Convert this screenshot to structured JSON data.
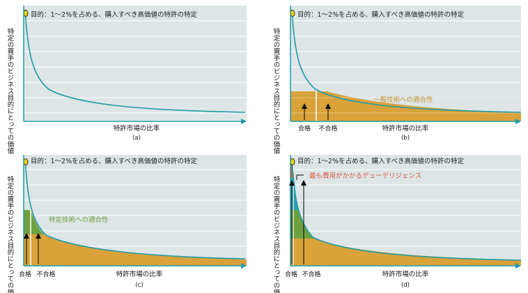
{
  "panels": [
    {
      "id": "a",
      "goal": "目的：1～2%を占める、購入すべき高価値の特許の特定",
      "ylabel": "特定の買手のビジネス目的にとっての価値",
      "xlabel": "特許市場の比率",
      "caption": "(a)"
    },
    {
      "id": "b",
      "goal": "目的：1～2%を占める、購入すべき高価値の特許の特定",
      "ylabel": "特定の買手のビジネス目的にとっての価値",
      "xlabel": "特許市場の比率",
      "caption": "(b)",
      "annotation": "一般技術への適合性",
      "pass_label": "合格",
      "fail_label": "不合格"
    },
    {
      "id": "c",
      "goal": "目的：1～2%を占める、購入すべき高価値の特許の特定",
      "ylabel": "特定の買手のビジネス目的にとっての価値",
      "xlabel": "特許市場の比率",
      "caption": "(c)",
      "annotation": "特定技術への適合性",
      "pass_label": "合格",
      "fail_label": "不合格"
    },
    {
      "id": "d",
      "goal": "目的：1～2%を占める、購入すべき高価値の特許の特定",
      "ylabel": "特定の買手のビジネス目的にとっての価値",
      "xlabel": "特許市場の比率",
      "caption": "(d)",
      "annotation": "最も費用がかかるデューデリジェンス",
      "pass_label": "合格",
      "fail_label": "不合格"
    }
  ],
  "colors": {
    "panel_bg": "#dde5e7",
    "grid": "#ffffff",
    "curve": "#1f9aa6",
    "axis": "#1f9aa6",
    "orange": "#d9a23a",
    "green": "#6fa03e",
    "teal_fill": "#2aa1ad",
    "red": "#d65a3c",
    "marker": "#f0d020"
  }
}
